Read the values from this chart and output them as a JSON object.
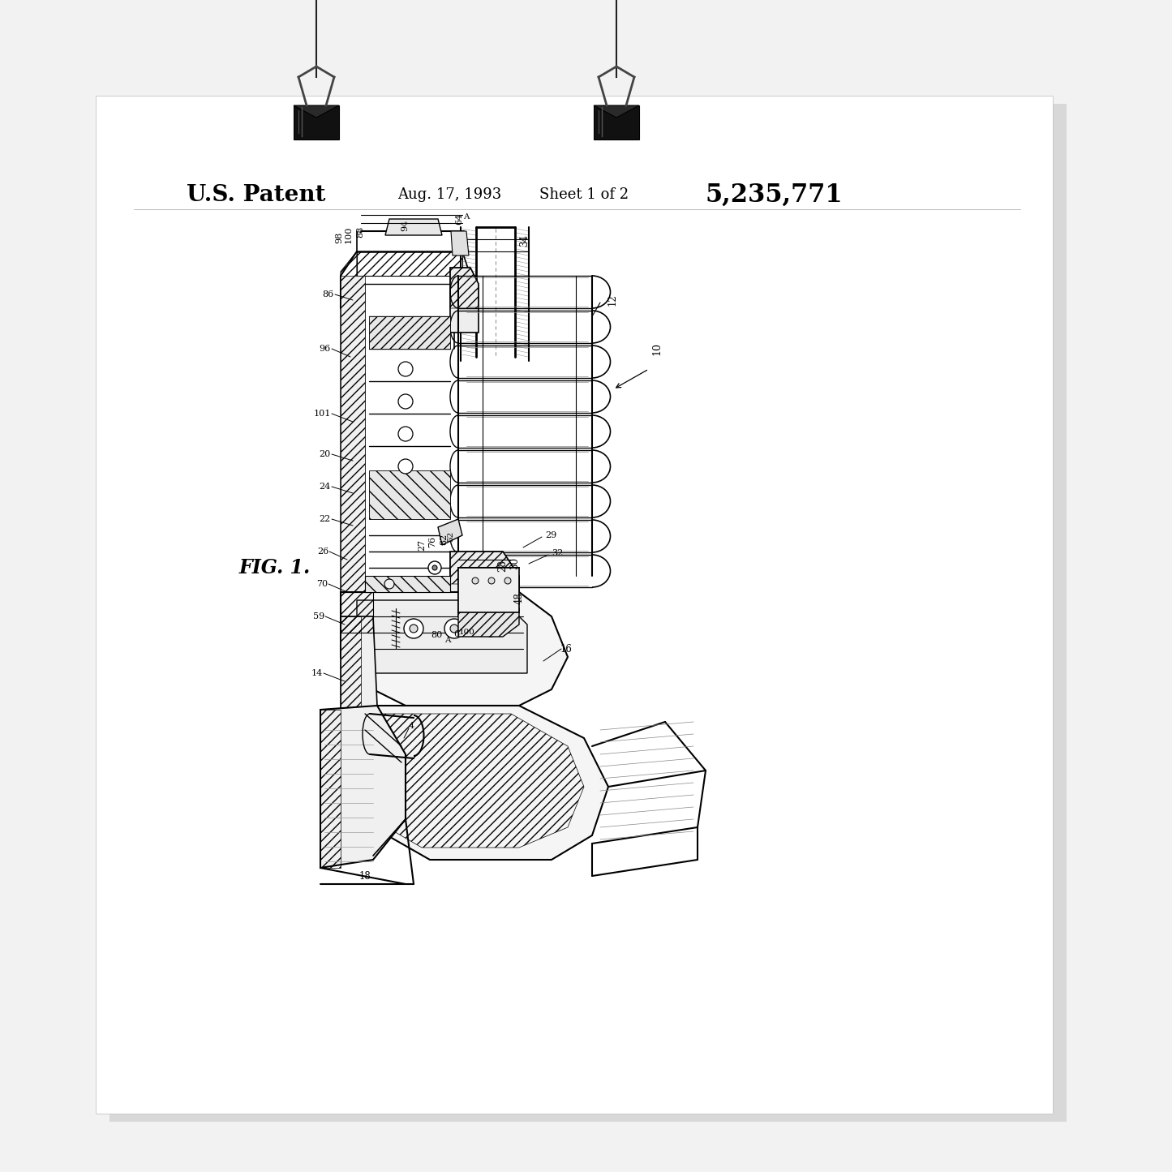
{
  "bg_color": "#f2f2f2",
  "paper_color": "#ffffff",
  "patent_text": "U.S. Patent",
  "date_text": "Aug. 17, 1993",
  "sheet_text": "Sheet 1 of 2",
  "number_text": "5,235,771",
  "fig_label": "FIG. 1.",
  "line_color": "#000000",
  "clip_color": "#1a1a1a",
  "string_color": "#222222"
}
